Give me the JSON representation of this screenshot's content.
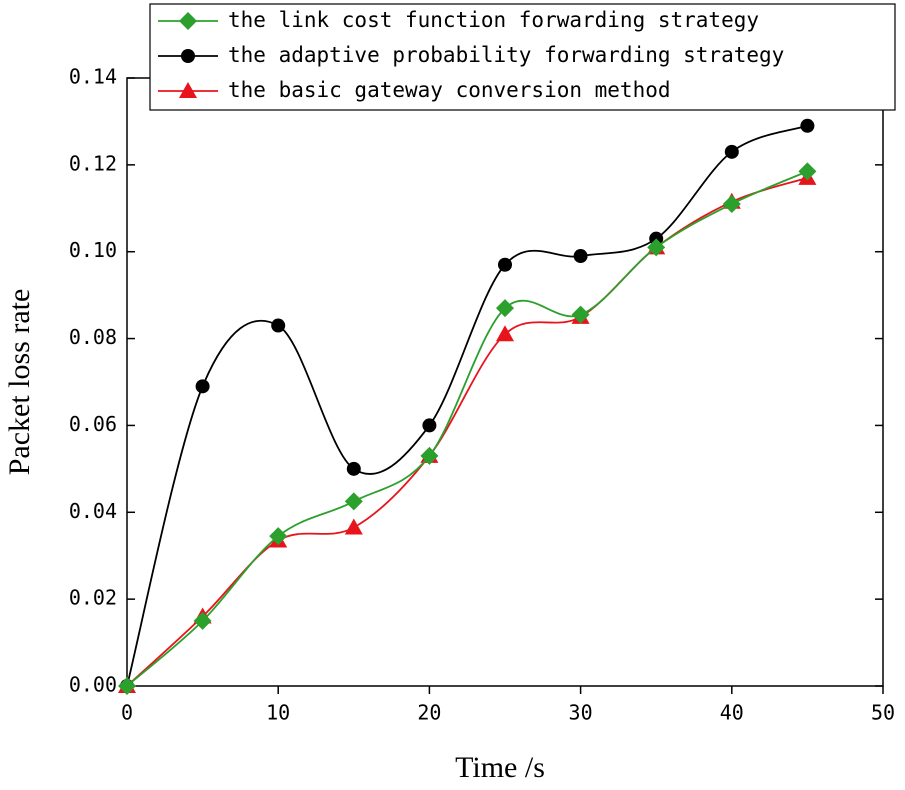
{
  "chart_data": {
    "type": "line",
    "x_label": "Time /s",
    "y_label": "Packet loss rate",
    "x": [
      0,
      5,
      10,
      15,
      20,
      25,
      30,
      35,
      40,
      45
    ],
    "series": [
      {
        "name": "the link cost function forwarding strategy",
        "color": "#2ca02c",
        "marker": "diamond",
        "values": [
          0,
          0.015,
          0.0345,
          0.0425,
          0.053,
          0.087,
          0.0855,
          0.101,
          0.111,
          0.1185
        ]
      },
      {
        "name": "the adaptive probability forwarding strategy",
        "color": "#000000",
        "marker": "circle",
        "values": [
          0,
          0.069,
          0.083,
          0.05,
          0.06,
          0.097,
          0.099,
          0.103,
          0.123,
          0.129
        ]
      },
      {
        "name": "the basic gateway conversion method",
        "color": "#e8141c",
        "marker": "triangle",
        "values": [
          0,
          0.016,
          0.0335,
          0.0365,
          0.053,
          0.081,
          0.085,
          0.101,
          0.1115,
          0.117
        ]
      }
    ],
    "xlim": [
      0,
      50
    ],
    "xticks": [
      0,
      10,
      20,
      30,
      40,
      50
    ],
    "ylim": [
      0,
      0.14
    ],
    "yticks": [
      {
        "value": 0,
        "label": "0.00"
      },
      {
        "value": 0.02,
        "label": "0.02"
      },
      {
        "value": 0.04,
        "label": "0.04"
      },
      {
        "value": 0.06,
        "label": "0.06"
      },
      {
        "value": 0.08,
        "label": "0.08"
      },
      {
        "value": 0.1,
        "label": "0.10"
      },
      {
        "value": 0.12,
        "label": "0.12"
      },
      {
        "value": 0.14,
        "label": "0.14"
      }
    ],
    "grid": false,
    "legend": "top-left",
    "smooth": true
  }
}
